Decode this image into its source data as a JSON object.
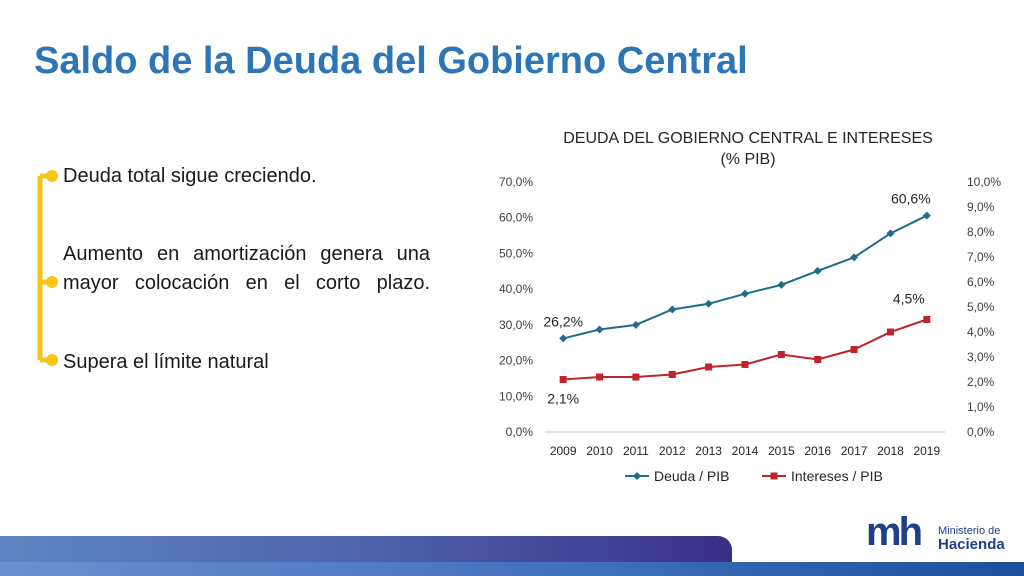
{
  "slide": {
    "title": "Saldo de la Deuda del Gobierno Central",
    "bullets": [
      "Deuda total sigue creciendo.",
      "Aumento en  amortización genera una mayor colocación en el corto plazo.",
      "Supera el límite natural"
    ]
  },
  "chart_data": {
    "type": "line",
    "title": "DEUDA DEL GOBIERNO CENTRAL E INTERESES (% PIB)",
    "title_lines": [
      "DEUDA DEL GOBIERNO CENTRAL E INTERESES",
      "(% PIB)"
    ],
    "categories": [
      "2009",
      "2010",
      "2011",
      "2012",
      "2013",
      "2014",
      "2015",
      "2016",
      "2017",
      "2018",
      "2019"
    ],
    "series": [
      {
        "name": "Deuda / PIB",
        "axis": "left",
        "color": "#1f6c8c",
        "marker": "diamond",
        "values": [
          26.2,
          28.7,
          30.0,
          34.3,
          35.9,
          38.7,
          41.2,
          45.1,
          48.9,
          55.6,
          60.6
        ]
      },
      {
        "name": "Intereses / PIB",
        "axis": "right",
        "color": "#c0232b",
        "marker": "square",
        "values": [
          2.1,
          2.2,
          2.2,
          2.3,
          2.6,
          2.7,
          3.1,
          2.9,
          3.3,
          4.0,
          4.5
        ]
      }
    ],
    "y_left": {
      "min": 0,
      "max": 70,
      "step": 10,
      "tick_labels": [
        "0,0%",
        "10,0%",
        "20,0%",
        "30,0%",
        "40,0%",
        "50,0%",
        "60,0%",
        "70,0%"
      ]
    },
    "y_right": {
      "min": 0,
      "max": 10,
      "step": 1,
      "tick_labels": [
        "0,0%",
        "1,0%",
        "2,0%",
        "3,0%",
        "4,0%",
        "5,0%",
        "6,0%",
        "7,0%",
        "8,0%",
        "9,0%",
        "10,0%"
      ]
    },
    "annotations": [
      {
        "text": "26,2%",
        "series": 0,
        "index": 0
      },
      {
        "text": "60,6%",
        "series": 0,
        "index": 10
      },
      {
        "text": "2,1%",
        "series": 1,
        "index": 0
      },
      {
        "text": "4,5%",
        "series": 1,
        "index": 10
      }
    ],
    "legend_position": "bottom",
    "grid": false
  },
  "branding": {
    "logo_mark": "mh",
    "logo_line1": "Ministerio de",
    "logo_line2": "Hacienda",
    "accent_color": "#f5c518",
    "title_color": "#2e75b6"
  }
}
